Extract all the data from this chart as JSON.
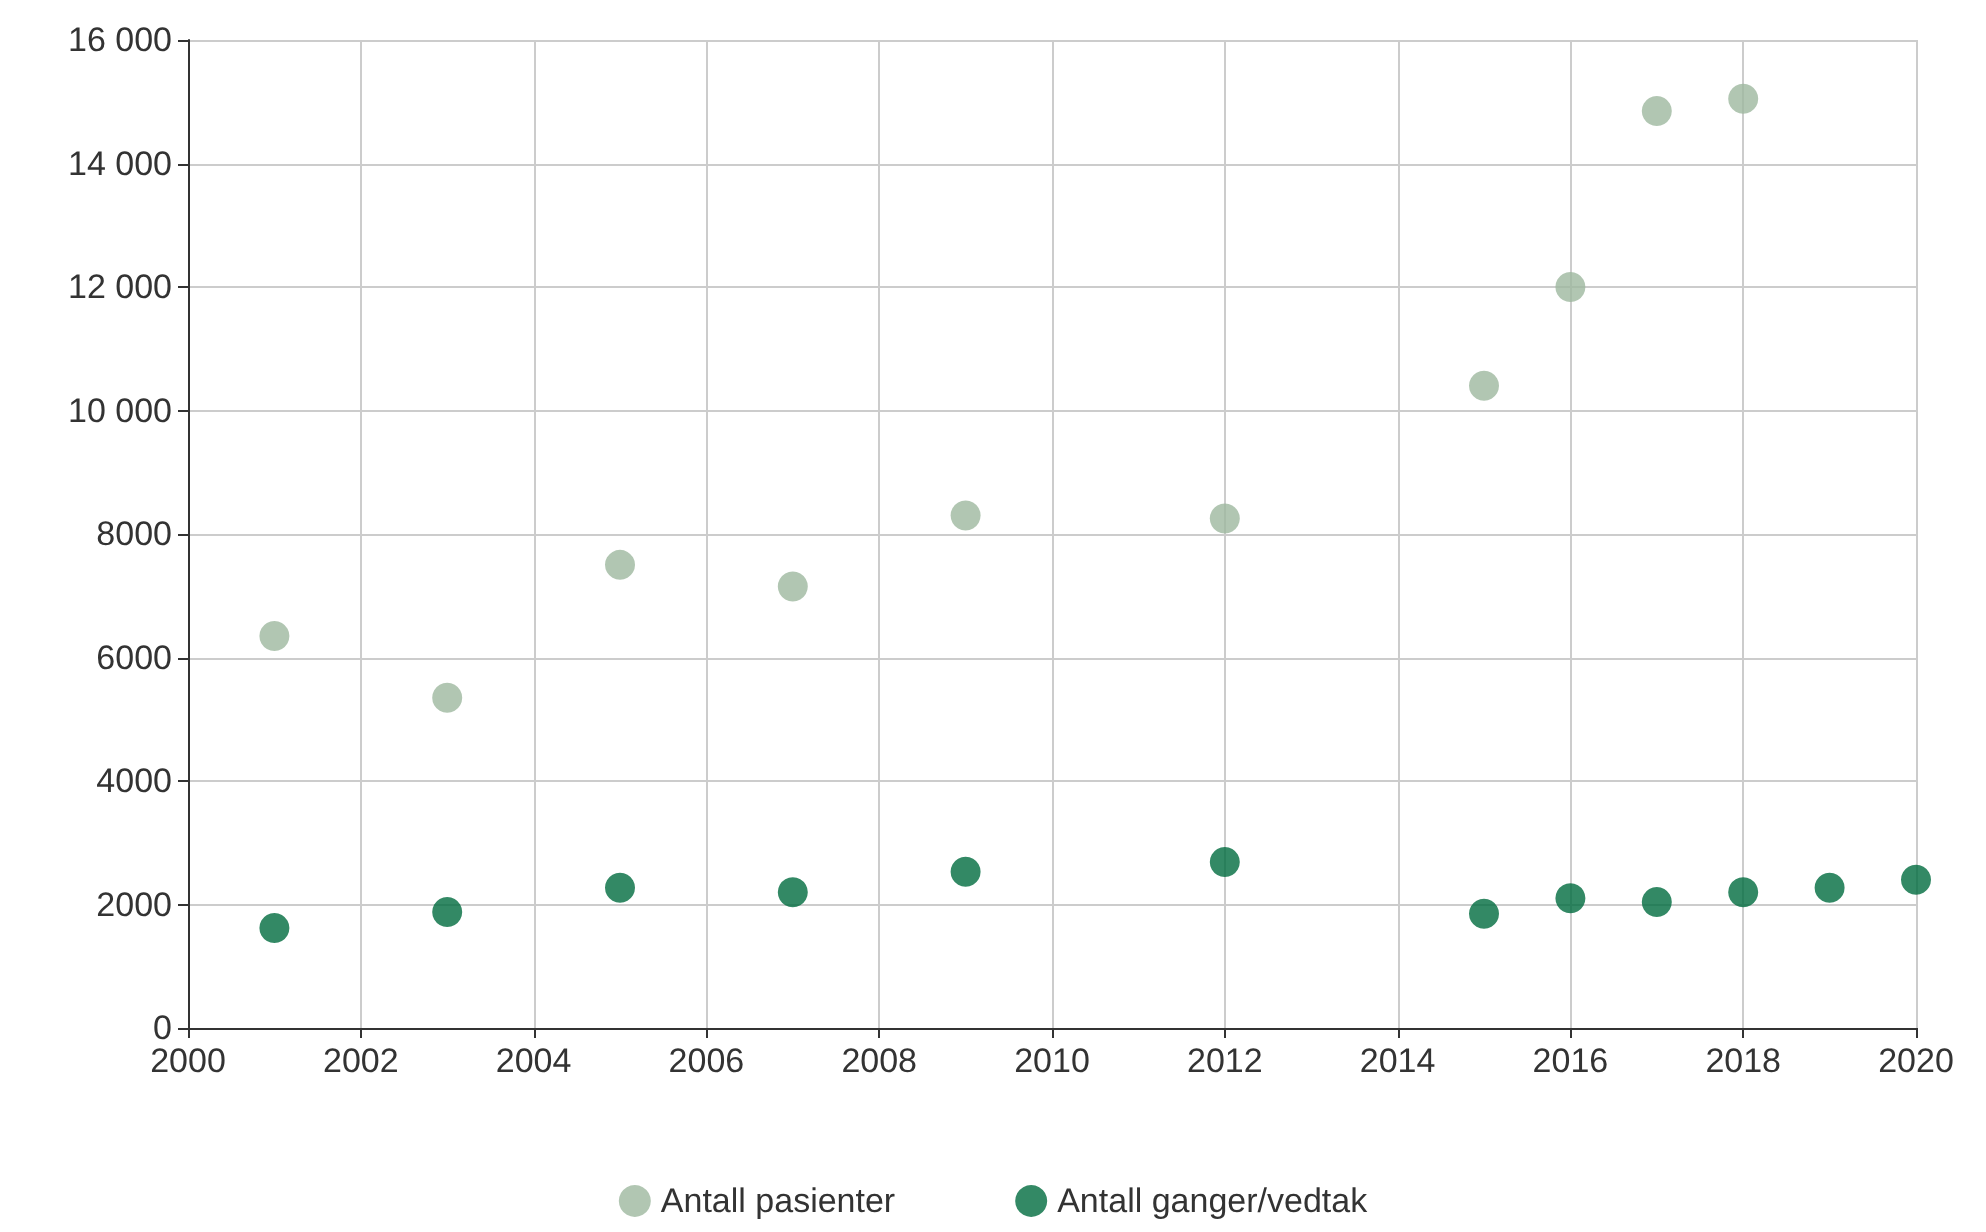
{
  "chart_data": {
    "type": "scatter",
    "x": [
      2001,
      2003,
      2005,
      2007,
      2009,
      2012,
      2015,
      2016,
      2017,
      2018,
      2019,
      2020
    ],
    "series": [
      {
        "name": "Antall pasienter",
        "color": "#9db89f",
        "values": [
          6350,
          5350,
          7500,
          7150,
          8300,
          8250,
          10400,
          12000,
          14850,
          15050,
          null,
          null
        ]
      },
      {
        "name": "Antall ganger/vedtak",
        "color": "#006b3f",
        "values": [
          1620,
          1880,
          2270,
          2200,
          2530,
          2690,
          1850,
          2100,
          2040,
          2200,
          2270,
          2400
        ]
      }
    ],
    "xlim": [
      2000,
      2020
    ],
    "xticks": [
      2000,
      2002,
      2004,
      2006,
      2008,
      2010,
      2012,
      2014,
      2016,
      2018,
      2020
    ],
    "ylim": [
      0,
      16000
    ],
    "yticks": [
      0,
      2000,
      4000,
      6000,
      8000,
      {
        "value": 10000,
        "label": "10 000"
      },
      {
        "value": 12000,
        "label": "12 000"
      },
      {
        "value": 14000,
        "label": "14 000"
      },
      {
        "value": 16000,
        "label": "16 000"
      }
    ],
    "grid": true,
    "legend": "bottom",
    "marker": "circle"
  }
}
